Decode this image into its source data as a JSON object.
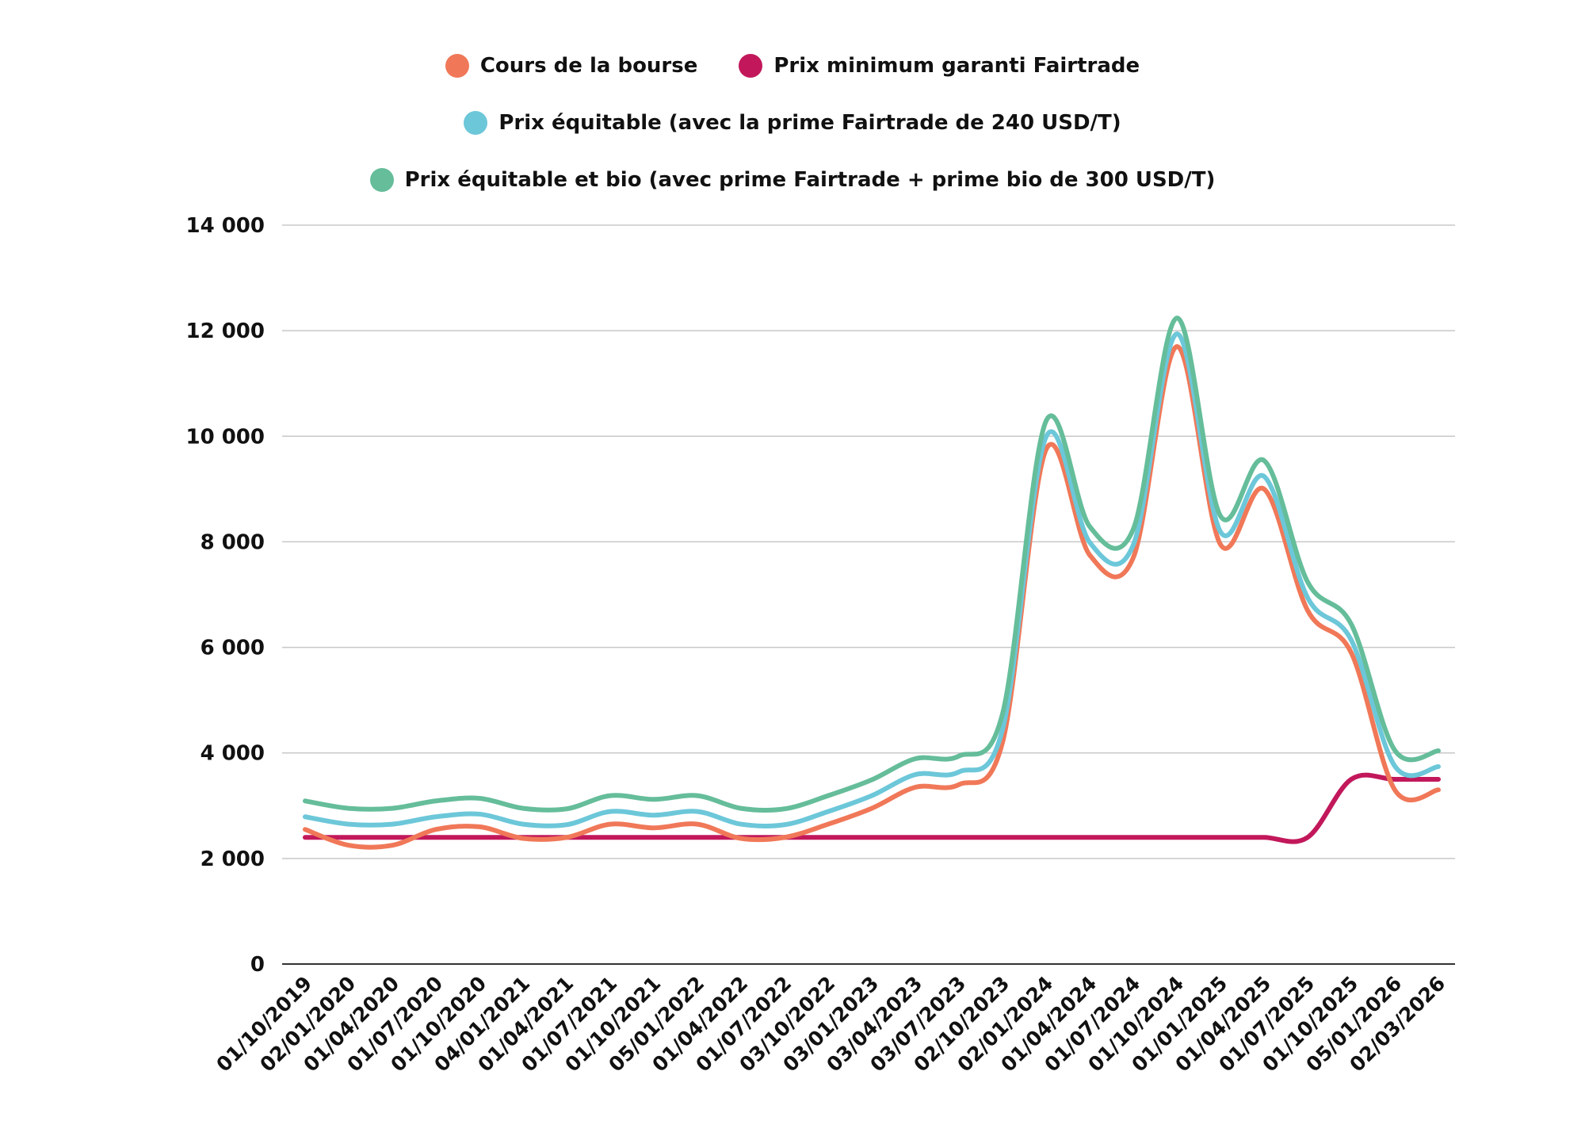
{
  "chart_data": {
    "type": "line",
    "title": "",
    "xlabel": "",
    "ylabel": "",
    "ylim": [
      0,
      14000
    ],
    "y_ticks": [
      0,
      2000,
      4000,
      6000,
      8000,
      10000,
      12000,
      14000
    ],
    "y_tick_labels": [
      "0",
      "2 000",
      "4 000",
      "6 000",
      "8 000",
      "10 000",
      "12 000",
      "14 000"
    ],
    "grid": "horizontal",
    "legend_position": "top-center",
    "categories": [
      "01/10/2019",
      "02/01/2020",
      "01/04/2020",
      "01/07/2020",
      "01/10/2020",
      "04/01/2021",
      "01/04/2021",
      "01/07/2021",
      "01/10/2021",
      "05/01/2022",
      "01/04/2022",
      "01/07/2022",
      "03/10/2022",
      "03/01/2023",
      "03/04/2023",
      "03/07/2023",
      "02/10/2023",
      "02/01/2024",
      "01/04/2024",
      "01/07/2024",
      "01/10/2024",
      "01/01/2025",
      "01/04/2025",
      "01/07/2025",
      "01/10/2025",
      "05/01/2026",
      "02/03/2026"
    ],
    "series": [
      {
        "name": "Prix minimum garanti Fairtrade",
        "color": "#C2185B",
        "values": [
          2400,
          2400,
          2400,
          2400,
          2400,
          2400,
          2400,
          2400,
          2400,
          2400,
          2400,
          2400,
          2400,
          2400,
          2400,
          2400,
          2400,
          2400,
          2400,
          2400,
          2400,
          2400,
          2400,
          2400,
          3500,
          3500,
          3500
        ]
      },
      {
        "name": "Cours de la bourse",
        "color": "#F07858",
        "values": [
          2550,
          2250,
          2250,
          2550,
          2600,
          2380,
          2400,
          2650,
          2580,
          2650,
          2380,
          2400,
          2650,
          2950,
          3350,
          3400,
          4200,
          9750,
          7750,
          7700,
          11700,
          7950,
          9000,
          6700,
          5900,
          3300,
          3300
        ]
      },
      {
        "name": "Prix équitable (avec la prime Fairtrade de 240 USD/T)",
        "color": "#6CC7D9",
        "values": [
          2790,
          2650,
          2650,
          2790,
          2840,
          2650,
          2640,
          2890,
          2820,
          2890,
          2650,
          2640,
          2890,
          3190,
          3590,
          3640,
          4440,
          9990,
          7990,
          7940,
          11940,
          8190,
          9240,
          6940,
          6140,
          3750,
          3740
        ]
      },
      {
        "name": "Prix équitable et bio (avec prime Fairtrade + prime bio de 300 USD/T)",
        "color": "#65BD9A",
        "values": [
          3090,
          2950,
          2950,
          3090,
          3140,
          2950,
          2940,
          3190,
          3120,
          3190,
          2950,
          2940,
          3190,
          3490,
          3890,
          3940,
          4740,
          10290,
          8290,
          8240,
          12240,
          8490,
          9540,
          7240,
          6440,
          4050,
          4040
        ]
      }
    ]
  },
  "legend": {
    "row1": [
      {
        "label": "Cours de la bourse",
        "color": "#F07858"
      },
      {
        "label": "Prix minimum garanti Fairtrade",
        "color": "#C2185B"
      }
    ],
    "row2": [
      {
        "label": "Prix équitable (avec la prime Fairtrade de 240 USD/T)",
        "color": "#6CC7D9"
      }
    ],
    "row3": [
      {
        "label": "Prix équitable et bio (avec prime Fairtrade + prime bio de 300 USD/T)",
        "color": "#65BD9A"
      }
    ]
  }
}
